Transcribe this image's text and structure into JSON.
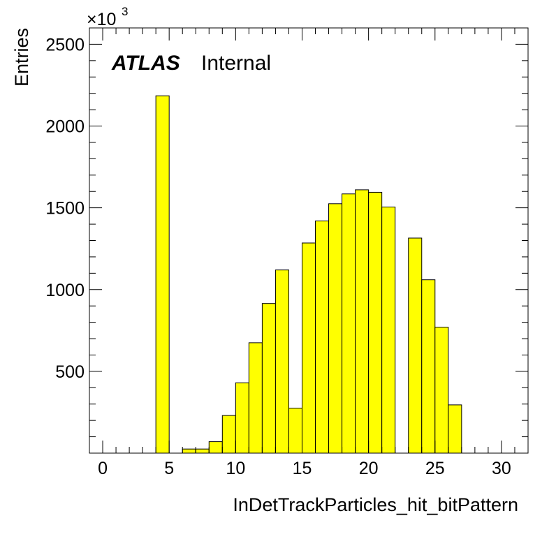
{
  "chart_data": {
    "type": "bar",
    "title": "",
    "xlabel": "InDetTrackParticles_hit_bitPattern",
    "ylabel": "Entries",
    "y_multiplier_base": "×10",
    "y_multiplier_exp": "3",
    "label_atlas": "ATLAS",
    "label_internal": "Internal",
    "xlim": [
      -1,
      32
    ],
    "ylim": [
      0,
      2600
    ],
    "x_ticks": [
      0,
      5,
      10,
      15,
      20,
      25,
      30
    ],
    "x_tick_labels": [
      "0",
      "5",
      "10",
      "15",
      "20",
      "25",
      "30"
    ],
    "y_ticks": [
      500,
      1000,
      1500,
      2000,
      2500
    ],
    "y_tick_labels": [
      "500",
      "1000",
      "1500",
      "2000",
      "2500"
    ],
    "bin_width": 1,
    "bin_lows": [
      4,
      6,
      7,
      8,
      9,
      10,
      11,
      12,
      13,
      14,
      15,
      16,
      17,
      18,
      19,
      20,
      21,
      23,
      24,
      25,
      26
    ],
    "values": [
      2185,
      25,
      25,
      70,
      230,
      430,
      675,
      915,
      1120,
      275,
      1285,
      1420,
      1525,
      1585,
      1610,
      1595,
      1505,
      1315,
      1060,
      770,
      295
    ],
    "fill_color": "#ffff00",
    "line_color": "#000000",
    "grid": false
  }
}
